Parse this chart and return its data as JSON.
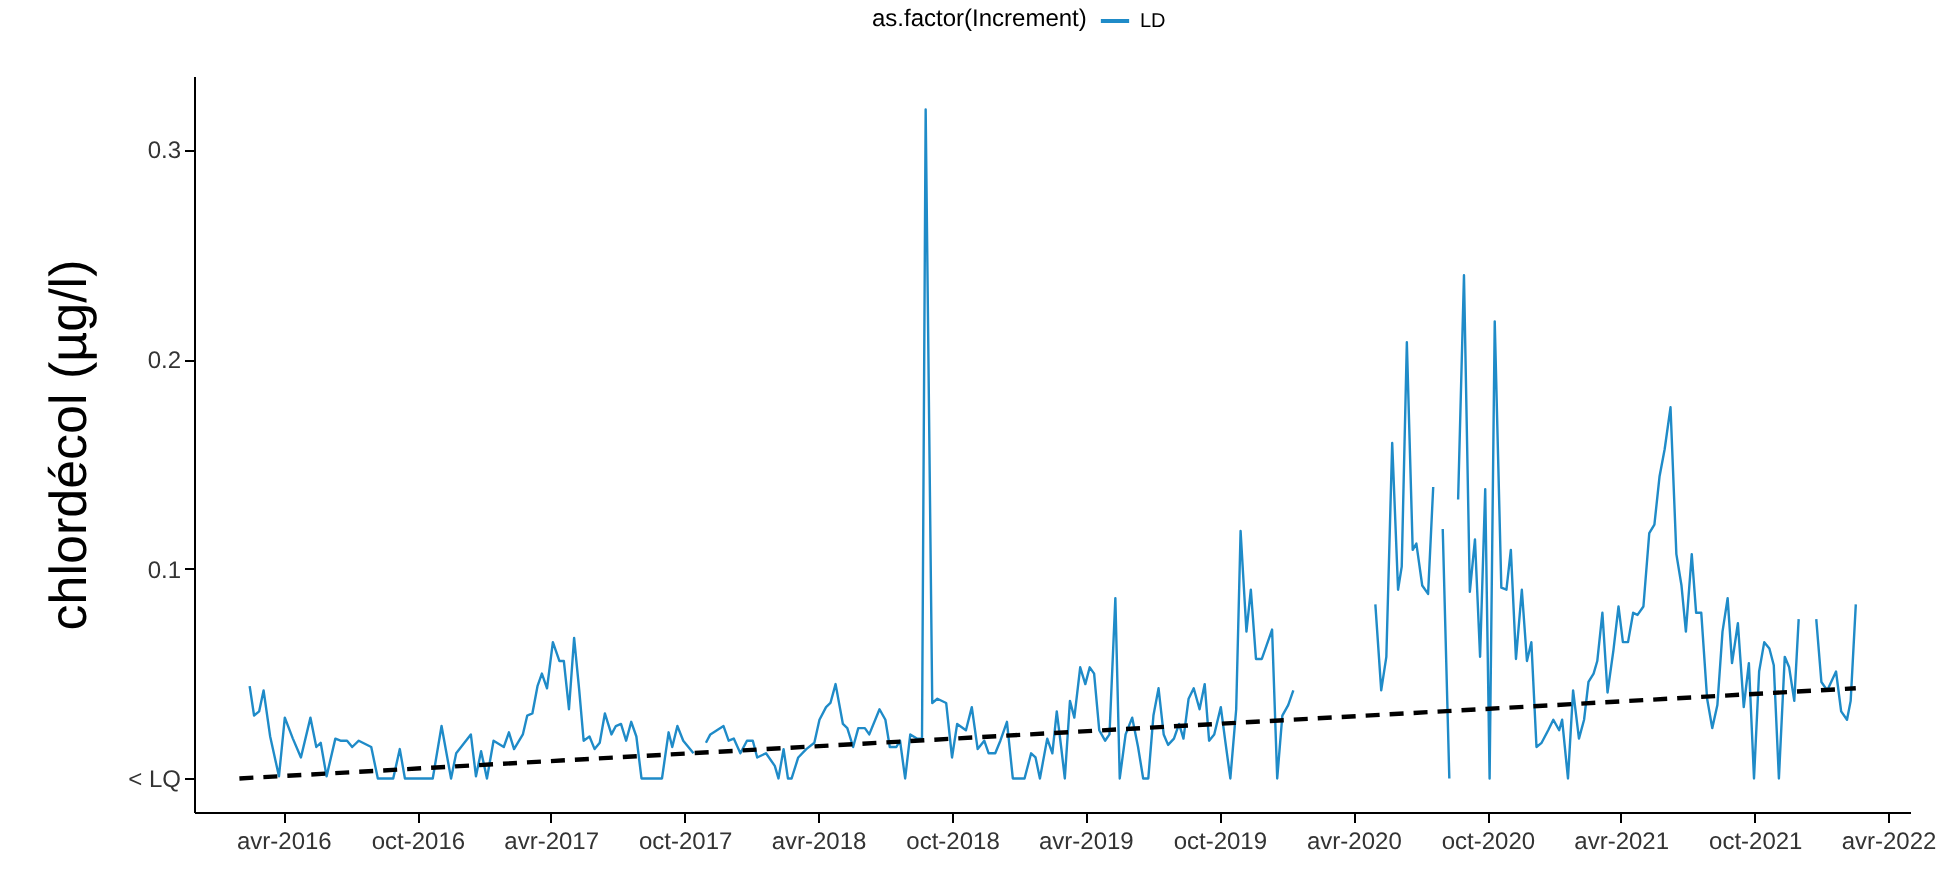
{
  "chart_data": {
    "type": "line",
    "ylabel": "chlordécol (µg/l)",
    "legend_title": "as.factor(Increment)",
    "legend": "top",
    "grid": false,
    "xlim": [
      "2015-12-01",
      "2022-05-01"
    ],
    "xticks": [
      {
        "value": "2016-04-01",
        "label": "avr-2016"
      },
      {
        "value": "2016-10-01",
        "label": "oct-2016"
      },
      {
        "value": "2017-04-01",
        "label": "avr-2017"
      },
      {
        "value": "2017-10-01",
        "label": "oct-2017"
      },
      {
        "value": "2018-04-01",
        "label": "avr-2018"
      },
      {
        "value": "2018-10-01",
        "label": "oct-2018"
      },
      {
        "value": "2019-04-01",
        "label": "avr-2019"
      },
      {
        "value": "2019-10-01",
        "label": "oct-2019"
      },
      {
        "value": "2020-04-01",
        "label": "avr-2020"
      },
      {
        "value": "2020-10-01",
        "label": "oct-2020"
      },
      {
        "value": "2021-04-01",
        "label": "avr-2021"
      },
      {
        "value": "2021-10-01",
        "label": "oct-2021"
      },
      {
        "value": "2022-04-01",
        "label": "avr-2022"
      }
    ],
    "ylim": [
      -0.016,
      0.335
    ],
    "yticks": [
      {
        "value": 0,
        "label": "< LQ"
      },
      0.1,
      0.2,
      0.3
    ],
    "series": [
      {
        "name": "LD",
        "color": "#1f8bc8",
        "line_style": "solid",
        "x": [
          "2016-02-15",
          "2016-02-21",
          "2016-02-28",
          "2016-03-05",
          "2016-03-14",
          "2016-03-26",
          "2016-04-03",
          "2016-04-14",
          "2016-04-25",
          "2016-05-08",
          "2016-05-16",
          "2016-05-22",
          "2016-05-30",
          "2016-06-11",
          "2016-06-18",
          "2016-06-27",
          "2016-07-04",
          "2016-07-13",
          "2016-07-30",
          "2016-08-08",
          "2016-08-29",
          "2016-09-07",
          "2016-09-14",
          "2016-10-22",
          "2016-11-03",
          "2016-11-16",
          "2016-11-23",
          "2016-12-13",
          "2016-12-20",
          "2016-12-27",
          "2017-01-04",
          "2017-01-13",
          "2017-01-27",
          "2017-02-03",
          "2017-02-10",
          "2017-02-22",
          "2017-02-28",
          "2017-03-07",
          "2017-03-14",
          "2017-03-20",
          "2017-03-27",
          "2017-04-04",
          "2017-04-13",
          "2017-04-19",
          "2017-04-26",
          "2017-05-03",
          "2017-05-10",
          "2017-05-16",
          "2017-05-24",
          "2017-05-31",
          "2017-06-07",
          "2017-06-14",
          "2017-06-23",
          "2017-06-29",
          "2017-07-06",
          "2017-07-13",
          "2017-07-20",
          "2017-07-27",
          "2017-08-03",
          "2017-08-31",
          "2017-09-09",
          "2017-09-14",
          "2017-09-21",
          "2017-09-29",
          "2017-10-13",
          "2017-10-21",
          "2017-10-30",
          "2017-11-05",
          "2017-11-23",
          "2017-11-30",
          "2017-12-07",
          "2017-12-16",
          "2017-12-25",
          "2018-01-02",
          "2018-01-08",
          "2018-01-20",
          "2018-02-01",
          "2018-02-06",
          "2018-02-13",
          "2018-02-19",
          "2018-02-24",
          "2018-03-05",
          "2018-03-16",
          "2018-03-27",
          "2018-04-03",
          "2018-04-12",
          "2018-04-18",
          "2018-04-25",
          "2018-05-05",
          "2018-05-11",
          "2018-05-19",
          "2018-05-26",
          "2018-06-04",
          "2018-06-10",
          "2018-06-24",
          "2018-07-02",
          "2018-07-08",
          "2018-07-17",
          "2018-07-22",
          "2018-07-29",
          "2018-08-05",
          "2018-08-14",
          "2018-08-21",
          "2018-08-26",
          "2018-09-04",
          "2018-09-11",
          "2018-09-23",
          "2018-10-01",
          "2018-10-08",
          "2018-10-20",
          "2018-10-28",
          "2018-11-05",
          "2018-11-14",
          "2018-11-20",
          "2018-11-29",
          "2018-12-06",
          "2018-12-15",
          "2018-12-23",
          "2019-01-08",
          "2019-01-17",
          "2019-01-23",
          "2019-01-29",
          "2019-02-08",
          "2019-02-15",
          "2019-02-21",
          "2019-02-27",
          "2019-03-04",
          "2019-03-11",
          "2019-03-17",
          "2019-03-25",
          "2019-04-01",
          "2019-04-07",
          "2019-04-13",
          "2019-04-20",
          "2019-04-28",
          "2019-05-04",
          "2019-05-12",
          "2019-05-18",
          "2019-05-26",
          "2019-06-04",
          "2019-06-12",
          "2019-06-19",
          "2019-06-26",
          "2019-07-03",
          "2019-07-10",
          "2019-07-17",
          "2019-07-23",
          "2019-07-31",
          "2019-08-07",
          "2019-08-13",
          "2019-08-20",
          "2019-08-27",
          "2019-09-04",
          "2019-09-11",
          "2019-09-17",
          "2019-09-24",
          "2019-10-03",
          "2019-10-09",
          "2019-10-16",
          "2019-10-24",
          "2019-10-30",
          "2019-11-07",
          "2019-11-13",
          "2019-11-20",
          "2019-11-28",
          "2019-12-12",
          "2019-12-19",
          "2019-12-26",
          "2020-01-03",
          "2020-01-10",
          "2020-03-01",
          "2020-05-01",
          "2020-05-09",
          "2020-05-16",
          "2020-05-24",
          "2020-06-01",
          "2020-06-06",
          "2020-06-13",
          "2020-06-21",
          "2020-06-26",
          "2020-07-04",
          "2020-07-12",
          "2020-07-19",
          "2020-07-25",
          "2020-08-01",
          "2020-08-10",
          "2020-08-16",
          "2020-08-22",
          "2020-08-30",
          "2020-09-07",
          "2020-09-14",
          "2020-09-21",
          "2020-09-28",
          "2020-10-04",
          "2020-10-11",
          "2020-10-20",
          "2020-10-27",
          "2020-11-02",
          "2020-11-09",
          "2020-11-17",
          "2020-11-24",
          "2020-11-30",
          "2020-12-07",
          "2020-12-14",
          "2020-12-23",
          "2020-12-30",
          "2021-01-07",
          "2021-01-11",
          "2021-01-19",
          "2021-01-26",
          "2021-02-03",
          "2021-02-10",
          "2021-02-16",
          "2021-02-23",
          "2021-02-28",
          "2021-03-07",
          "2021-03-14",
          "2021-03-22",
          "2021-03-29",
          "2021-04-04",
          "2021-04-11",
          "2021-04-18",
          "2021-04-24",
          "2021-05-02",
          "2021-05-10",
          "2021-05-17",
          "2021-05-24",
          "2021-05-31",
          "2021-06-08",
          "2021-06-16",
          "2021-06-23",
          "2021-06-29",
          "2021-07-07",
          "2021-07-13",
          "2021-07-20",
          "2021-07-28",
          "2021-08-04",
          "2021-08-11",
          "2021-08-18",
          "2021-08-25",
          "2021-08-31",
          "2021-09-08",
          "2021-09-16",
          "2021-09-23",
          "2021-09-30",
          "2021-10-07",
          "2021-10-14",
          "2021-10-21",
          "2021-10-27",
          "2021-11-03",
          "2021-11-11",
          "2021-11-17",
          "2021-11-24",
          "2021-11-30",
          "2021-12-10",
          "2021-12-24",
          "2021-12-31",
          "2022-01-08",
          "2022-01-20",
          "2022-01-27",
          "2022-02-04",
          "2022-02-09",
          "2022-02-16"
        ],
        "values": [
          0.044,
          0.03,
          0.032,
          0.042,
          0.02,
          0.001,
          0.029,
          0.019,
          0.01,
          0.029,
          0.015,
          0.017,
          0.001,
          0.019,
          0.018,
          0.018,
          0.015,
          0.018,
          0.015,
          0.0,
          0.0,
          0.014,
          0.0,
          0.0,
          0.025,
          0.0,
          0.012,
          0.021,
          0.001,
          0.013,
          0.0,
          0.018,
          0.015,
          0.022,
          0.014,
          0.021,
          0.03,
          0.031,
          0.044,
          0.05,
          0.043,
          0.065,
          0.056,
          0.056,
          0.033,
          0.067,
          0.042,
          0.018,
          0.02,
          0.014,
          0.017,
          0.031,
          0.021,
          0.025,
          0.026,
          0.018,
          0.027,
          0.02,
          0.0,
          0.0,
          0.022,
          0.015,
          0.025,
          0.018,
          0.012,
          null,
          0.017,
          0.021,
          0.025,
          0.018,
          0.019,
          0.012,
          0.018,
          0.018,
          0.01,
          0.012,
          0.006,
          0.0,
          0.014,
          0.0,
          0.0,
          0.01,
          0.014,
          0.017,
          0.028,
          0.034,
          0.036,
          0.045,
          0.026,
          0.024,
          0.015,
          0.024,
          0.024,
          0.021,
          0.033,
          0.028,
          0.015,
          0.015,
          0.018,
          0.0,
          0.021,
          0.019,
          0.019,
          0.319,
          0.036,
          0.038,
          0.036,
          0.01,
          0.026,
          0.023,
          0.034,
          0.014,
          0.018,
          0.012,
          0.012,
          0.018,
          0.027,
          0.0,
          0.0,
          0.012,
          0.01,
          0.0,
          0.019,
          0.012,
          0.032,
          0.015,
          0.0,
          0.037,
          0.029,
          0.053,
          0.045,
          0.053,
          0.05,
          0.023,
          0.018,
          0.021,
          0.086,
          0.0,
          0.021,
          0.029,
          0.015,
          0.0,
          0.0,
          0.03,
          0.043,
          0.021,
          0.016,
          0.019,
          0.026,
          0.019,
          0.038,
          0.043,
          0.033,
          0.045,
          0.018,
          0.021,
          0.034,
          0.018,
          0.0,
          0.033,
          0.118,
          0.07,
          0.09,
          0.057,
          0.057,
          0.071,
          0.0,
          0.03,
          0.035,
          0.042,
          null,
          0.083,
          0.042,
          0.058,
          0.16,
          0.09,
          0.101,
          0.208,
          0.109,
          0.112,
          0.092,
          0.088,
          0.139,
          null,
          0.119,
          0.0,
          null,
          0.133,
          0.24,
          0.089,
          0.114,
          0.058,
          0.138,
          0.0,
          0.218,
          0.091,
          0.09,
          0.109,
          0.057,
          0.09,
          0.056,
          0.065,
          0.015,
          0.017,
          0.023,
          0.028,
          0.023,
          0.028,
          0.0,
          0.042,
          0.019,
          0.028,
          0.046,
          0.05,
          0.056,
          0.079,
          0.041,
          0.061,
          0.082,
          0.065,
          0.065,
          0.079,
          0.078,
          0.082,
          0.117,
          0.121,
          0.144,
          0.157,
          0.177,
          0.107,
          0.092,
          0.07,
          0.107,
          0.079,
          0.079,
          0.038,
          0.024,
          0.035,
          0.07,
          0.086,
          0.055,
          0.074,
          0.034,
          0.055,
          0.0,
          0.051,
          0.065,
          0.062,
          0.054,
          0.0,
          0.058,
          0.053,
          0.037,
          0.076,
          null,
          0.076,
          0.046,
          0.042,
          0.051,
          0.032,
          0.028,
          0.037,
          0.083
        ]
      },
      {
        "type": "line",
        "color": "#000000",
        "line_style": "dashed",
        "x": [
          "2016-02-01",
          "2022-02-16"
        ],
        "values": [
          0.0,
          0.043
        ]
      }
    ]
  }
}
